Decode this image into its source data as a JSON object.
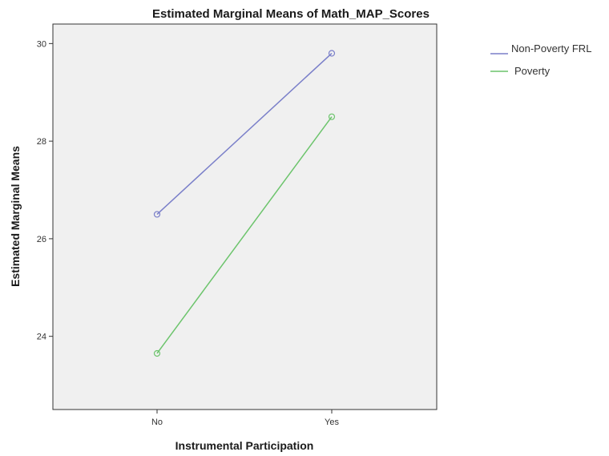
{
  "chart_data": {
    "type": "line",
    "title": "Estimated Marginal Means of Math_MAP_Scores",
    "xlabel": "Instrumental Participation",
    "ylabel": "Estimated Marginal Means",
    "categories": [
      "No",
      "Yes"
    ],
    "ylim": [
      22.5,
      30.4
    ],
    "yticks": [
      24,
      26,
      28,
      30
    ],
    "grid": false,
    "legend_position": "right",
    "plot_background": "#f0f0f0",
    "series": [
      {
        "name": "Non-Poverty FRL",
        "values": [
          26.5,
          29.8
        ],
        "color": "#7a7fc9"
      },
      {
        "name": "Poverty",
        "values": [
          23.65,
          28.5
        ],
        "color": "#6cc46c"
      }
    ]
  }
}
